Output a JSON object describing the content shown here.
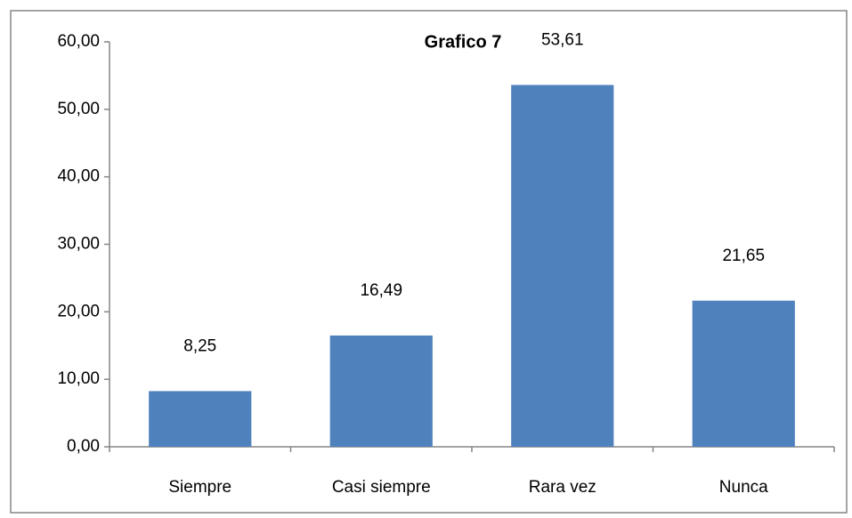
{
  "chart_data": {
    "type": "bar",
    "title": "Grafico 7",
    "categories": [
      "Siempre",
      "Casi siempre",
      "Rara vez",
      "Nunca"
    ],
    "values": [
      8.25,
      16.49,
      53.61,
      21.65
    ],
    "value_labels": [
      "8,25",
      "16,49",
      "53,61",
      "21,65"
    ],
    "color": "#4f81bd",
    "ylim": [
      0,
      60
    ],
    "yticks": [
      {
        "value": 0,
        "label": "0,00"
      },
      {
        "value": 10,
        "label": "10,00"
      },
      {
        "value": 20,
        "label": "20,00"
      },
      {
        "value": 30,
        "label": "30,00"
      },
      {
        "value": 40,
        "label": "40,00"
      },
      {
        "value": 50,
        "label": "50,00"
      },
      {
        "value": 60,
        "label": "60,00"
      }
    ],
    "grid": false
  }
}
